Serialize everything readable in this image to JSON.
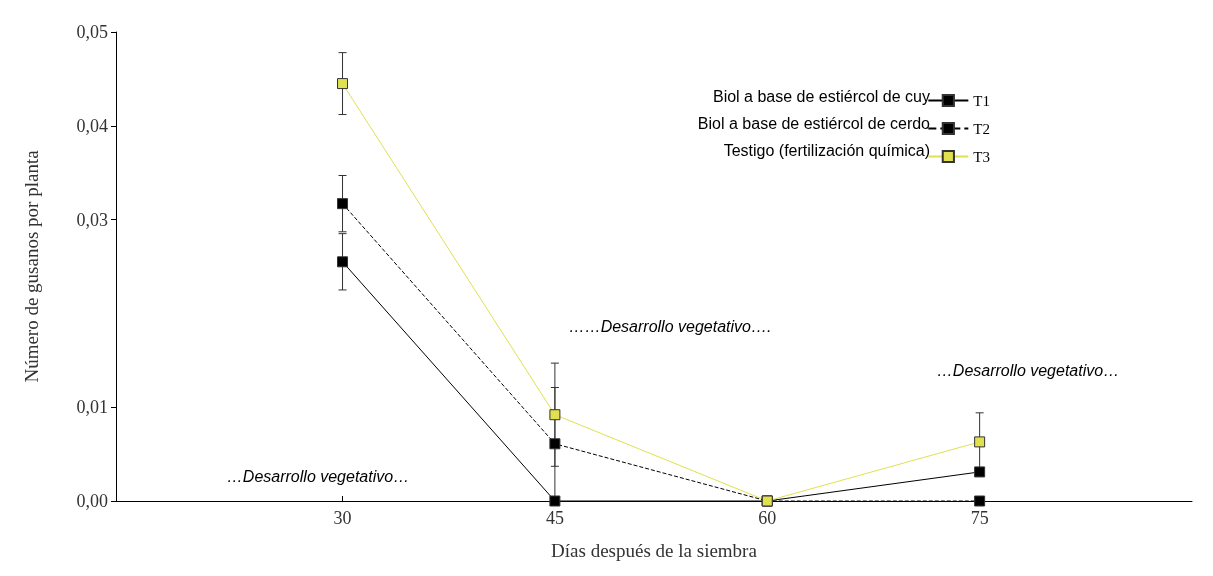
{
  "chart_data": {
    "type": "line",
    "xlabel": "Días después de la siembra",
    "ylabel": "Número de gusanos por planta",
    "x": [
      30,
      45,
      60,
      75
    ],
    "xlim": [
      14,
      90
    ],
    "xticks": [
      30,
      45,
      60,
      75
    ],
    "ylim": [
      0,
      0.05
    ],
    "yticks": [
      {
        "value": 0,
        "label": "0,00"
      },
      {
        "value": 0.01,
        "label": "0,01"
      },
      {
        "value": 0.03,
        "label": "0,03"
      },
      {
        "value": 0.04,
        "label": "0,04"
      },
      {
        "value": 0.05,
        "label": "0,05"
      }
    ],
    "series": [
      {
        "name": "T1",
        "color": "#000000",
        "line_style": "solid",
        "values": [
          0.0255,
          0,
          0,
          0.0031
        ],
        "errors": [
          0.003,
          null,
          null,
          null
        ]
      },
      {
        "name": "T2",
        "color": "#000000",
        "line_style": "dashed",
        "values": [
          0.0317,
          0.0061,
          0,
          0
        ],
        "errors": [
          0.003,
          0.006,
          null,
          null
        ]
      },
      {
        "name": "T3",
        "color": "#e0e050",
        "line_style": "solid",
        "values": [
          0.0445,
          0.0092,
          0,
          0.0063
        ],
        "errors": [
          0.0033,
          0.0055,
          null,
          0.0031
        ]
      }
    ],
    "marker": "square",
    "grid": false,
    "legend": "top right",
    "annotations": [
      "Biol a base de estiércol de cuy",
      "Biol a base de estiércol de cerdo",
      "Testigo (fertilización química)",
      "…Desarrollo vegetativo…",
      "……Desarrollo vegetativo….",
      "…Desarrollo vegetativo…"
    ]
  }
}
